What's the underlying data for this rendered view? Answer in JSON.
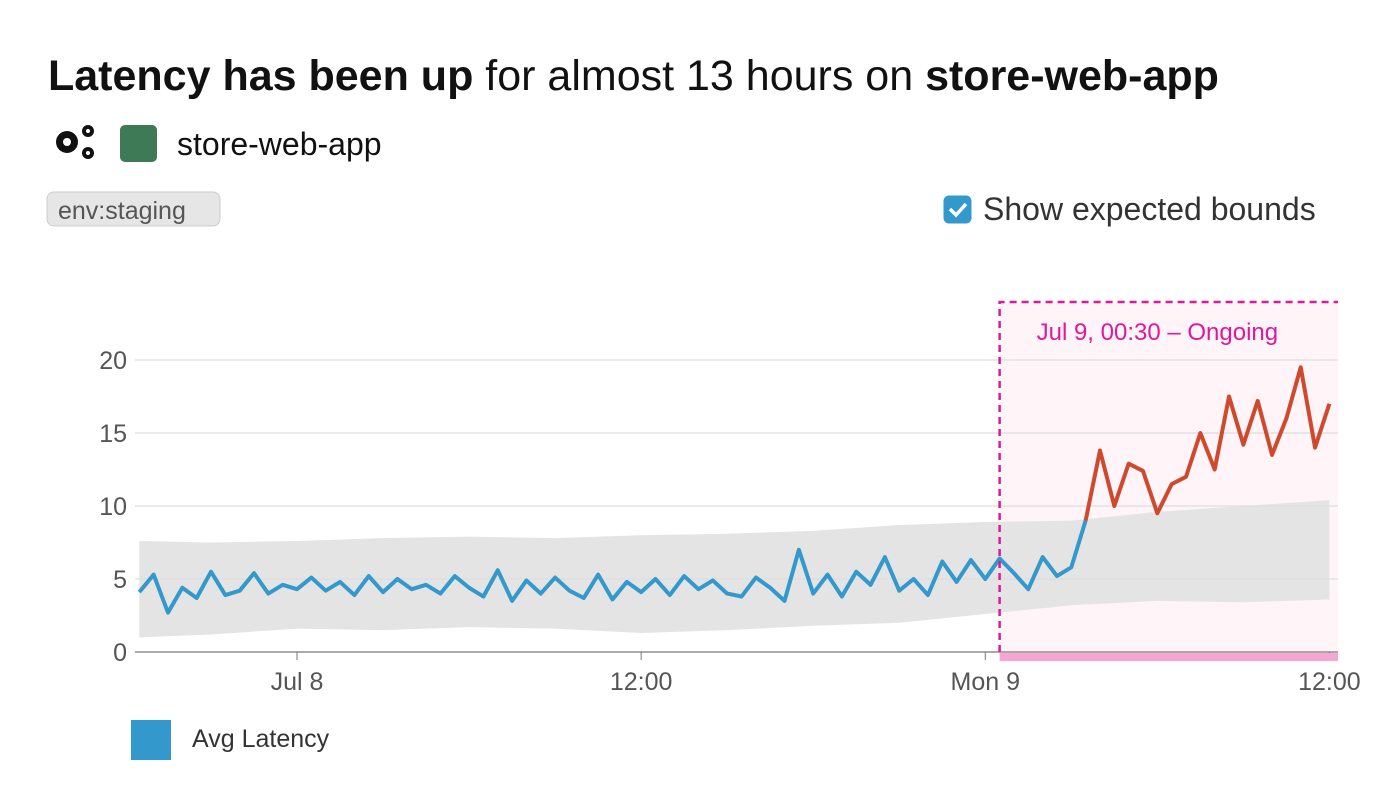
{
  "header": {
    "title_parts": [
      {
        "text": "Latency has been up",
        "bold": true
      },
      {
        "text": " for almost 13 hours on ",
        "bold": false
      },
      {
        "text": "store-web-app",
        "bold": true
      }
    ]
  },
  "service": {
    "name": "store-web-app",
    "color": "#3d7a55"
  },
  "tag": "env:staging",
  "toggle": {
    "label": "Show expected bounds",
    "checked": true
  },
  "chart_data": {
    "type": "line",
    "x": [
      -5.5,
      -5,
      -4.5,
      -4,
      -3.5,
      -3,
      -2.5,
      -2,
      -1.5,
      -1,
      -0.5,
      0,
      0.5,
      1,
      1.5,
      2,
      2.5,
      3,
      3.5,
      4,
      4.5,
      5,
      5.5,
      6,
      6.5,
      7,
      7.5,
      8,
      8.5,
      9,
      9.5,
      10,
      10.5,
      11,
      11.5,
      12,
      12.5,
      13,
      13.5,
      14,
      14.5,
      15,
      15.5,
      16,
      16.5,
      17,
      17.5,
      18,
      18.5,
      19,
      19.5,
      20,
      20.5,
      21,
      21.5,
      22,
      22.5,
      23,
      23.5,
      24,
      24.5,
      25,
      25.5,
      26,
      26.5,
      27,
      27.5,
      28,
      28.5,
      29,
      29.5,
      30,
      30.5,
      31,
      31.5,
      32,
      32.5,
      33,
      33.5,
      34,
      34.5,
      35,
      35.5,
      36
    ],
    "series": [
      {
        "name": "Avg Latency",
        "color": "#3399cc",
        "values": [
          4.1,
          5.3,
          2.7,
          4.4,
          3.7,
          5.5,
          3.9,
          4.2,
          5.4,
          4.0,
          4.6,
          4.3,
          5.1,
          4.2,
          4.8,
          3.9,
          5.2,
          4.1,
          5.0,
          4.3,
          4.6,
          4.0,
          5.2,
          4.4,
          3.8,
          5.6,
          3.5,
          4.9,
          4.0,
          5.1,
          4.2,
          3.7,
          5.3,
          3.6,
          4.8,
          4.1,
          5.0,
          3.9,
          5.2,
          4.3,
          4.9,
          4.0,
          3.8,
          5.1,
          4.4,
          3.5,
          7.0,
          4.0,
          5.3,
          3.8,
          5.5,
          4.6,
          6.5,
          4.2,
          5.0,
          3.9,
          6.2,
          4.8,
          6.3,
          5.0,
          6.4,
          5.4,
          4.3,
          6.5,
          5.2,
          5.8,
          9.0,
          13.8,
          10.0,
          12.9,
          12.4,
          9.5,
          11.5,
          12.0,
          15.0,
          12.5,
          17.5,
          14.2,
          17.2,
          13.5,
          16.0,
          19.5,
          14.0,
          17.0
        ]
      }
    ],
    "anomaly_color": "#cf4a2c",
    "bounds": {
      "color": "#e4e4e4",
      "x": [
        -5.5,
        -3,
        0,
        3,
        6,
        9,
        12,
        15,
        18,
        21,
        24,
        27,
        30,
        33,
        36
      ],
      "upper": [
        7.6,
        7.5,
        7.6,
        7.8,
        7.9,
        7.8,
        8.0,
        8.1,
        8.3,
        8.7,
        8.9,
        9.0,
        9.6,
        10.0,
        10.4
      ],
      "lower": [
        1.0,
        1.2,
        1.6,
        1.5,
        1.7,
        1.6,
        1.3,
        1.5,
        1.8,
        2.0,
        2.6,
        3.2,
        3.5,
        3.4,
        3.6
      ]
    },
    "anomaly": {
      "label": "Jul 9, 00:30 – Ongoing",
      "start": 24.5,
      "color": "#e0189a"
    },
    "xlim": [
      -5.65,
      36.3
    ],
    "ylim": [
      0,
      20
    ],
    "xticks": [
      {
        "value": 0,
        "label": "Jul 8"
      },
      {
        "value": 12,
        "label": "12:00"
      },
      {
        "value": 24,
        "label": "Mon 9"
      },
      {
        "value": 36,
        "label": "12:00"
      }
    ],
    "yticks": [
      0,
      5,
      10,
      15,
      20
    ],
    "grid": true
  }
}
